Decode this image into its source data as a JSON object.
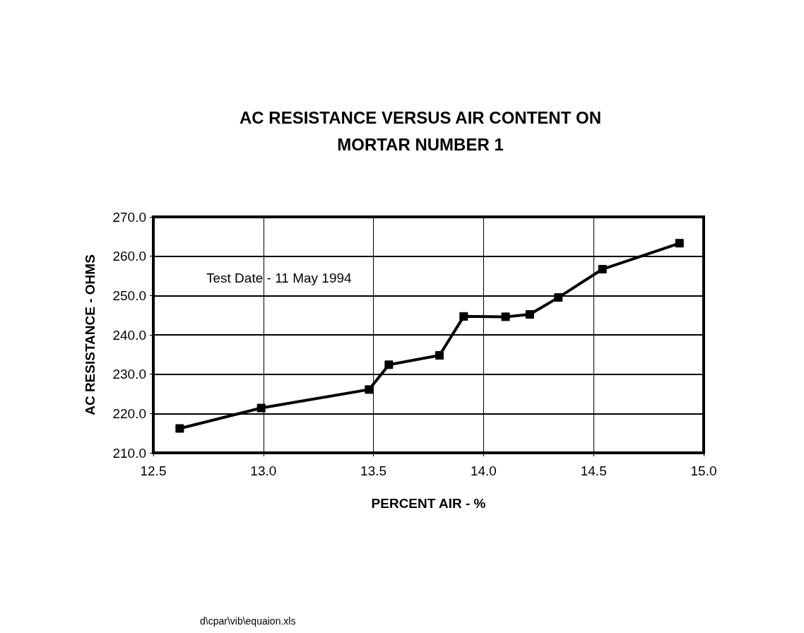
{
  "chart_data": {
    "type": "line",
    "title": "AC RESISTANCE VERSUS AIR CONTENT ON\nMORTAR NUMBER 1",
    "xlabel": "PERCENT AIR - %",
    "ylabel": "AC RESISTANCE - OHMS",
    "annotations": [
      "Test Date - 11 May 1994",
      "d\\cpar\\vib\\equaion.xls"
    ],
    "x": [
      12.62,
      12.99,
      13.48,
      13.57,
      13.8,
      13.91,
      14.1,
      14.21,
      14.34,
      14.54,
      14.89
    ],
    "series": [
      {
        "color": "#000000",
        "values": [
          216.2,
          221.4,
          226.1,
          232.4,
          234.8,
          244.7,
          244.6,
          245.2,
          249.5,
          256.7,
          263.3
        ]
      }
    ],
    "xlim": [
      12.5,
      15.0
    ],
    "xticks": [
      {
        "value": 12.5,
        "label": "12.5"
      },
      {
        "value": 13.0,
        "label": "13.0"
      },
      {
        "value": 13.5,
        "label": "13.5"
      },
      {
        "value": 14.0,
        "label": "14.0"
      },
      {
        "value": 14.5,
        "label": "14.5"
      },
      {
        "value": 15.0,
        "label": "15.0"
      }
    ],
    "ylim": [
      210,
      270
    ],
    "yticks": [
      {
        "value": 210,
        "label": "210.0"
      },
      {
        "value": 220,
        "label": "220.0"
      },
      {
        "value": 230,
        "label": "230.0"
      },
      {
        "value": 240,
        "label": "240.0"
      },
      {
        "value": 250,
        "label": "250.0"
      },
      {
        "value": 260,
        "label": "260.0"
      },
      {
        "value": 270,
        "label": "270.0"
      }
    ],
    "grid": true,
    "marker": "square",
    "line_style": "solid"
  }
}
